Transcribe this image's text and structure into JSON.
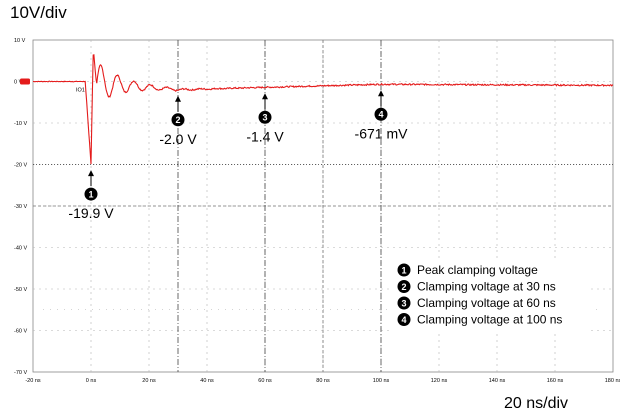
{
  "chart_data": {
    "type": "line",
    "title": "",
    "y_scale_label": "10V/div",
    "x_scale_label": "20 ns/div",
    "ylim": [
      -30,
      10
    ],
    "xlim": [
      -20,
      180
    ],
    "y_ticks": [
      "10 V",
      "0 V",
      "-10 V",
      "-20 V",
      "-30 V",
      "-40 V",
      "-50 V",
      "-60 V",
      "-70 V"
    ],
    "x_ticks": [
      "-20 ns",
      "0 ns",
      "20 ns",
      "40 ns",
      "60 ns",
      "80 ns",
      "100 ns",
      "120 ns",
      "140 ns",
      "160 ns",
      "180 ns"
    ],
    "trace_marker": "IO1",
    "series_color": "#e41b1b",
    "annotations": [
      {
        "num": "1",
        "label": "-19.9 V",
        "x": 0,
        "y": -19.9
      },
      {
        "num": "2",
        "label": "-2.0 V",
        "x": 30,
        "y": -2.0
      },
      {
        "num": "3",
        "label": "-1.4 V",
        "x": 60,
        "y": -1.4
      },
      {
        "num": "4",
        "label": "-671 mV",
        "x": 100,
        "y": -0.671
      }
    ],
    "legend": [
      {
        "num": "1",
        "label": "Peak clamping voltage"
      },
      {
        "num": "2",
        "label": "Clamping voltage at 30 ns"
      },
      {
        "num": "3",
        "label": "Clamping voltage at 60 ns"
      },
      {
        "num": "4",
        "label": "Clamping voltage at 100 ns"
      }
    ],
    "legend_position": "bottom-right",
    "grid": true
  }
}
